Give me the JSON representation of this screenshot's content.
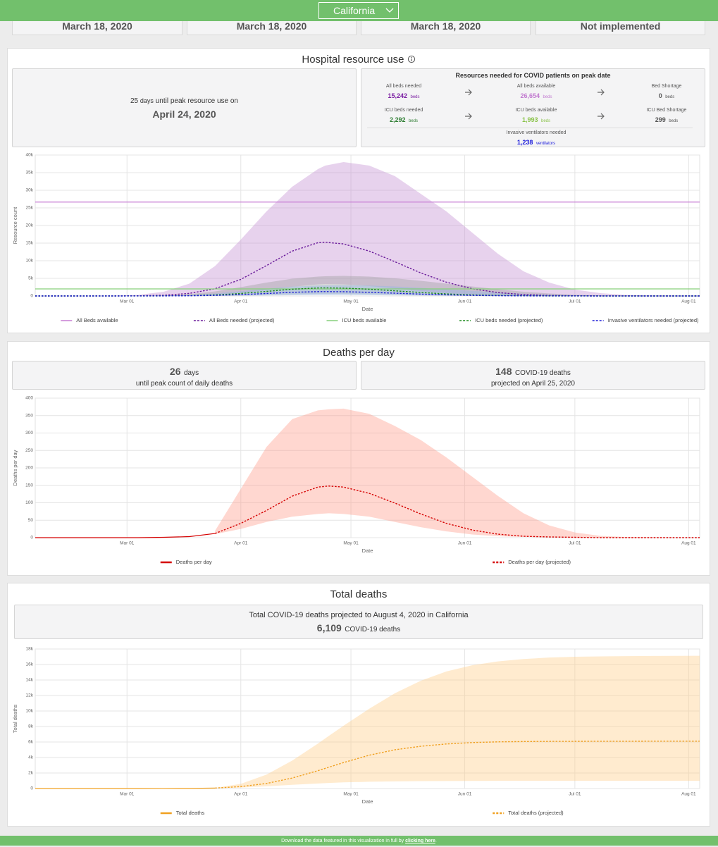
{
  "header": {
    "state": "California"
  },
  "top_cards": [
    "March 18, 2020",
    "March 18, 2020",
    "March 18, 2020",
    "Not implemented"
  ],
  "hospital": {
    "title": "Hospital resource use",
    "peak_days": "25",
    "days_unit": "days",
    "peak_text": "until peak resource use on",
    "peak_date": "April 24, 2020",
    "resources": {
      "title": "Resources needed for COVID patients on peak date",
      "items": [
        {
          "label": "All beds needed",
          "value": "15,242",
          "unit": "beds"
        },
        {
          "label": "All beds available",
          "value": "26,654",
          "unit": "beds"
        },
        {
          "label": "Bed Shortage",
          "value": "0",
          "unit": "beds"
        },
        {
          "label": "ICU beds needed",
          "value": "2,292",
          "unit": "beds"
        },
        {
          "label": "ICU beds available",
          "value": "1,993",
          "unit": "beds"
        },
        {
          "label": "ICU Bed Shortage",
          "value": "299",
          "unit": "beds"
        }
      ],
      "ventilators": {
        "label": "Invasive ventilators needed",
        "value": "1,238",
        "unit": "ventilators"
      }
    }
  },
  "deaths": {
    "title": "Deaths per day",
    "peak_days": "26",
    "days_unit": "days",
    "peak_text": "until peak count of daily deaths",
    "peak_count": "148",
    "count_unit": "COVID-19 deaths",
    "peak_date_text": "projected on April 25, 2020"
  },
  "total": {
    "title": "Total deaths",
    "summary": "Total COVID-19 deaths projected to August 4, 2020 in California",
    "count": "6,109",
    "count_unit": "COVID-19 deaths"
  },
  "footer": {
    "text": "Download the data featured in this visualization in full by",
    "link": "clicking here",
    "end": "."
  },
  "chart_data": [
    {
      "type": "line",
      "y_label": "Resource count",
      "x_label": "Date",
      "grid": true,
      "x": [
        "Feb 05",
        "Feb 12",
        "Feb 19",
        "Feb 26",
        "Mar 04",
        "Mar 11",
        "Mar 18",
        "Mar 25",
        "Apr 01",
        "Apr 08",
        "Apr 15",
        "Apr 22",
        "Apr 24",
        "Apr 29",
        "May 06",
        "May 13",
        "May 20",
        "May 27",
        "Jun 03",
        "Jun 10",
        "Jun 17",
        "Jun 24",
        "Jul 01",
        "Jul 08",
        "Jul 15",
        "Jul 22",
        "Jul 29",
        "Aug 04"
      ],
      "xlim": [
        "Feb 05",
        "Aug 04"
      ],
      "xticks": [
        "Mar 01",
        "Apr 01",
        "May 01",
        "Jun 01",
        "Jul 01",
        "Aug 01"
      ],
      "ylim": [
        0,
        40000
      ],
      "yticks": [
        0,
        {
          "value": 5000,
          "label": "5k"
        },
        {
          "value": 10000,
          "label": "10k"
        },
        {
          "value": 15000,
          "label": "15k"
        },
        {
          "value": 20000,
          "label": "20k"
        },
        {
          "value": 25000,
          "label": "25k"
        },
        {
          "value": 30000,
          "label": "30k"
        },
        {
          "value": 35000,
          "label": "35k"
        },
        {
          "value": 40000,
          "label": "40k"
        }
      ],
      "series": [
        {
          "name": "All Beds available",
          "color": "#c77dd4",
          "dash": false,
          "values": [
            26654,
            26654,
            26654,
            26654,
            26654,
            26654,
            26654,
            26654,
            26654,
            26654,
            26654,
            26654,
            26654,
            26654,
            26654,
            26654,
            26654,
            26654,
            26654,
            26654,
            26654,
            26654,
            26654,
            26654,
            26654,
            26654,
            26654,
            26654
          ]
        },
        {
          "name": "All Beds needed (projected)",
          "color": "#6a1b9a",
          "dash": true,
          "band_color": "#c48fd2",
          "values": [
            0,
            0,
            1,
            9,
            47,
            206,
            729,
            2063,
            4704,
            8627,
            12727,
            15107,
            15242,
            14770,
            12727,
            9707,
            6547,
            3906,
            2063,
            961,
            398,
            146,
            47,
            14,
            4,
            1,
            0,
            0
          ],
          "lower": [
            0,
            0,
            0,
            0,
            5,
            30,
            120,
            400,
            900,
            1700,
            2600,
            3300,
            3400,
            3300,
            2800,
            2100,
            1400,
            800,
            400,
            180,
            70,
            25,
            8,
            2,
            0,
            0,
            0,
            0
          ],
          "upper": [
            0,
            0,
            10,
            50,
            300,
            1200,
            3500,
            8500,
            16000,
            24000,
            31000,
            36000,
            37000,
            38000,
            37000,
            34000,
            29000,
            24000,
            18000,
            12000,
            7000,
            3800,
            1800,
            800,
            300,
            100,
            40,
            20
          ]
        },
        {
          "name": "ICU beds available",
          "color": "#86cf7a",
          "dash": false,
          "values": [
            1993,
            1993,
            1993,
            1993,
            1993,
            1993,
            1993,
            1993,
            1993,
            1993,
            1993,
            1993,
            1993,
            1993,
            1993,
            1993,
            1993,
            1993,
            1993,
            1993,
            1993,
            1993,
            1993,
            1993,
            1993,
            1993,
            1993,
            1993
          ]
        },
        {
          "name": "ICU beds needed (projected)",
          "color": "#1e8c1e",
          "dash": true,
          "band_color": "#9e9e9e",
          "values": [
            0,
            0,
            0,
            1,
            7,
            31,
            110,
            310,
            707,
            1298,
            1914,
            2272,
            2292,
            2221,
            1914,
            1460,
            985,
            587,
            310,
            145,
            60,
            22,
            7,
            2,
            1,
            0,
            0,
            0
          ],
          "lower": [
            0,
            0,
            0,
            0,
            1,
            5,
            18,
            60,
            135,
            255,
            390,
            495,
            510,
            495,
            420,
            315,
            210,
            120,
            60,
            27,
            10,
            4,
            1,
            0,
            0,
            0,
            0,
            0
          ],
          "upper": [
            0,
            0,
            0,
            5,
            30,
            150,
            500,
            1300,
            2500,
            3800,
            4900,
            5500,
            5600,
            5700,
            5500,
            5000,
            4300,
            3500,
            2700,
            1900,
            1200,
            700,
            350,
            150,
            60,
            20,
            5,
            0
          ]
        },
        {
          "name": "Invasive ventilators needed (projected)",
          "color": "#1f1fd6",
          "dash": true,
          "band_color": "#8fb3e6",
          "values": [
            0,
            0,
            0,
            1,
            4,
            17,
            59,
            168,
            382,
            701,
            1033,
            1227,
            1238,
            1199,
            1033,
            788,
            532,
            317,
            168,
            78,
            32,
            12,
            4,
            1,
            0,
            0,
            0,
            0
          ],
          "lower": [
            0,
            0,
            0,
            0,
            0,
            2,
            10,
            32,
            72,
            136,
            208,
            264,
            272,
            264,
            224,
            168,
            112,
            64,
            32,
            14,
            6,
            2,
            1,
            0,
            0,
            0,
            0,
            0
          ],
          "upper": [
            0,
            0,
            0,
            3,
            15,
            80,
            270,
            700,
            1350,
            2050,
            2650,
            2950,
            3000,
            3050,
            2950,
            2700,
            2300,
            1900,
            1450,
            1000,
            650,
            380,
            190,
            80,
            30,
            10,
            3,
            0
          ]
        }
      ]
    },
    {
      "type": "line",
      "y_label": "Deaths per day",
      "x_label": "Date",
      "grid": true,
      "x": [
        "Feb 05",
        "Feb 12",
        "Feb 19",
        "Feb 26",
        "Mar 04",
        "Mar 11",
        "Mar 18",
        "Mar 25",
        "Apr 01",
        "Apr 08",
        "Apr 15",
        "Apr 22",
        "Apr 25",
        "Apr 29",
        "May 06",
        "May 13",
        "May 20",
        "May 27",
        "Jun 03",
        "Jun 10",
        "Jun 17",
        "Jun 24",
        "Jul 01",
        "Jul 08",
        "Jul 15",
        "Jul 22",
        "Jul 29",
        "Aug 04"
      ],
      "xlim": [
        "Feb 05",
        "Aug 04"
      ],
      "xticks": [
        "Mar 01",
        "Apr 01",
        "May 01",
        "Jun 01",
        "Jul 01",
        "Aug 01"
      ],
      "ylim": [
        0,
        400
      ],
      "yticks": [
        0,
        50,
        100,
        150,
        200,
        250,
        300,
        350,
        400
      ],
      "series": [
        {
          "name": "Deaths per day",
          "color": "#d50000",
          "dash": false,
          "values": [
            0,
            0,
            0,
            0,
            0,
            1,
            3,
            12,
            null,
            null,
            null,
            null,
            null,
            null,
            null,
            null,
            null,
            null,
            null,
            null,
            null,
            null,
            null,
            null,
            null,
            null,
            null,
            null
          ]
        },
        {
          "name": "Deaths per day (projected)",
          "color": "#d50000",
          "dash": true,
          "band_color": "#ff9a8a",
          "values": [
            null,
            null,
            null,
            null,
            null,
            null,
            null,
            12,
            41,
            78,
            119,
            145,
            148,
            145,
            127,
            99,
            68,
            41,
            22,
            10,
            4,
            2,
            1,
            0,
            0,
            0,
            0,
            0
          ],
          "lower": [
            null,
            null,
            null,
            null,
            null,
            null,
            null,
            10,
            25,
            45,
            60,
            68,
            70,
            68,
            60,
            45,
            30,
            18,
            9,
            4,
            2,
            1,
            0,
            0,
            0,
            0,
            0,
            0
          ],
          "upper": [
            null,
            null,
            null,
            null,
            null,
            null,
            null,
            20,
            140,
            260,
            340,
            365,
            368,
            370,
            355,
            320,
            280,
            230,
            175,
            120,
            70,
            35,
            15,
            5,
            2,
            1,
            0,
            0
          ]
        }
      ]
    },
    {
      "type": "line",
      "y_label": "Total deaths",
      "x_label": "Date",
      "grid": true,
      "x": [
        "Feb 05",
        "Feb 12",
        "Feb 19",
        "Feb 26",
        "Mar 04",
        "Mar 11",
        "Mar 18",
        "Mar 25",
        "Apr 01",
        "Apr 08",
        "Apr 15",
        "Apr 22",
        "Apr 25",
        "Apr 29",
        "May 06",
        "May 13",
        "May 20",
        "May 27",
        "Jun 03",
        "Jun 10",
        "Jun 17",
        "Jun 24",
        "Jul 01",
        "Jul 08",
        "Jul 15",
        "Jul 22",
        "Jul 29",
        "Aug 04"
      ],
      "xlim": [
        "Feb 05",
        "Aug 04"
      ],
      "xticks": [
        "Mar 01",
        "Apr 01",
        "May 01",
        "Jun 01",
        "Jul 01",
        "Aug 01"
      ],
      "ylim": [
        0,
        18000
      ],
      "yticks": [
        0,
        {
          "value": 2000,
          "label": "2k"
        },
        {
          "value": 4000,
          "label": "4k"
        },
        {
          "value": 6000,
          "label": "6k"
        },
        {
          "value": 8000,
          "label": "8k"
        },
        {
          "value": 10000,
          "label": "10k"
        },
        {
          "value": 12000,
          "label": "12k"
        },
        {
          "value": 14000,
          "label": "14k"
        },
        {
          "value": 16000,
          "label": "16k"
        },
        {
          "value": 18000,
          "label": "18k"
        }
      ],
      "series": [
        {
          "name": "Total deaths",
          "color": "#f0a020",
          "dash": false,
          "values": [
            0,
            0,
            0,
            0,
            1,
            4,
            12,
            60,
            null,
            null,
            null,
            null,
            null,
            null,
            null,
            null,
            null,
            null,
            null,
            null,
            null,
            null,
            null,
            null,
            null,
            null,
            null,
            null
          ]
        },
        {
          "name": "Total deaths (projected)",
          "color": "#f0a020",
          "dash": true,
          "band_color": "#ffcc88",
          "values": [
            null,
            null,
            null,
            null,
            null,
            null,
            null,
            60,
            250,
            650,
            1350,
            2300,
            2750,
            3350,
            4300,
            5000,
            5450,
            5750,
            5930,
            6020,
            6060,
            6080,
            6090,
            6095,
            6100,
            6105,
            6107,
            6109
          ],
          "lower": [
            null,
            null,
            null,
            null,
            null,
            null,
            null,
            40,
            120,
            280,
            480,
            650,
            720,
            790,
            870,
            920,
            950,
            970,
            980,
            985,
            988,
            990,
            990,
            990,
            990,
            990,
            990,
            990
          ],
          "upper": [
            null,
            null,
            null,
            null,
            null,
            null,
            null,
            80,
            600,
            1800,
            3600,
            5800,
            6800,
            8100,
            10300,
            12300,
            13900,
            15100,
            15900,
            16400,
            16700,
            16900,
            17000,
            17050,
            17080,
            17100,
            17110,
            17120
          ]
        }
      ]
    }
  ]
}
